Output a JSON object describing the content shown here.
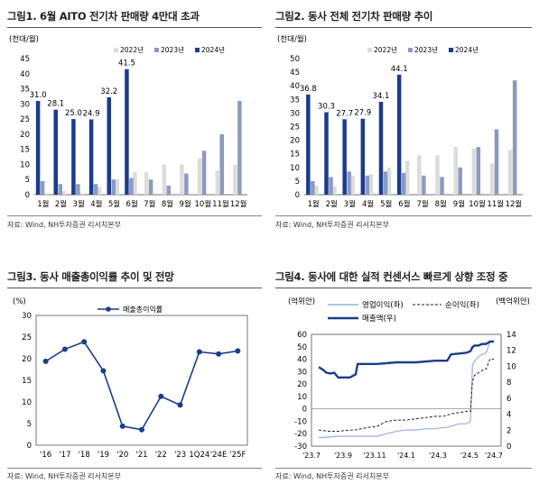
{
  "source_label": "자료: Wind, NH투자증권 리서치본부",
  "panels": [
    {
      "title": "그림1. 6월 AITO 전기차 판매량 4만대 초과"
    },
    {
      "title": "그림2. 동사 전체 전기차 판매량 추이"
    },
    {
      "title": "그림3. 동사 매출총이익률 추이 및 전망"
    },
    {
      "title": "그림4. 동사에 대한 실적 컨센서스 빠르게 상향 조정 중"
    }
  ],
  "colors": {
    "y2022": "#dcdcdc",
    "y2023": "#8a9ac2",
    "y2024": "#1b3c8c",
    "line": "#1b3c8c",
    "op": "#9aaed6",
    "net": "#222222"
  },
  "chart_data": [
    {
      "type": "bar",
      "title": "",
      "unit_label": "(천대/월)",
      "categories": [
        "1월",
        "2월",
        "3월",
        "4월",
        "5월",
        "6월",
        "7월",
        "8월",
        "9월",
        "10월",
        "11월",
        "12월"
      ],
      "ylim": [
        0,
        45
      ],
      "yticks": [
        0,
        5,
        10,
        15,
        20,
        25,
        30,
        35,
        40,
        45
      ],
      "series": [
        {
          "name": "2022년",
          "values": [
            0.5,
            1.2,
            0.5,
            2.5,
            5.0,
            7.5,
            7.5,
            10.0,
            10.0,
            12.0,
            8.0,
            10.0
          ]
        },
        {
          "name": "2023년",
          "values": [
            4.5,
            3.5,
            3.5,
            3.5,
            5.0,
            5.5,
            5.0,
            3.0,
            7.0,
            14.5,
            20.0,
            31.0
          ]
        },
        {
          "name": "2024년",
          "values": [
            31.0,
            28.1,
            25.0,
            24.9,
            32.2,
            41.5,
            null,
            null,
            null,
            null,
            null,
            null
          ]
        }
      ],
      "data_labels": [
        "31.0",
        "28.1",
        "25.0",
        "24.9",
        "32.2",
        "41.5"
      ]
    },
    {
      "type": "bar",
      "title": "",
      "unit_label": "(천대/월)",
      "categories": [
        "1월",
        "2월",
        "3월",
        "4월",
        "5월",
        "6월",
        "7월",
        "8월",
        "9월",
        "10월",
        "11월",
        "12월"
      ],
      "ylim": [
        0,
        50
      ],
      "yticks": [
        0,
        5,
        10,
        15,
        20,
        25,
        30,
        35,
        40,
        45,
        50
      ],
      "series": [
        {
          "name": "2022년",
          "values": [
            3.5,
            3.0,
            7.0,
            7.5,
            10.0,
            12.5,
            14.5,
            14.5,
            17.5,
            17.0,
            11.5,
            16.5
          ]
        },
        {
          "name": "2023년",
          "values": [
            5.0,
            6.5,
            8.5,
            7.0,
            8.5,
            8.0,
            7.0,
            6.5,
            10.0,
            17.5,
            24.0,
            42.0
          ]
        },
        {
          "name": "2024년",
          "values": [
            36.8,
            30.3,
            27.7,
            27.9,
            34.1,
            44.1,
            null,
            null,
            null,
            null,
            null,
            null
          ]
        }
      ],
      "data_labels": [
        "36.8",
        "30.3",
        "27.7",
        "27.9",
        "34.1",
        "44.1"
      ]
    },
    {
      "type": "line",
      "title": "",
      "unit_label": "(%)",
      "categories": [
        "'16",
        "'17",
        "'18",
        "'19",
        "'20",
        "'21",
        "'22",
        "'23",
        "1Q24",
        "'24E",
        "'25F"
      ],
      "ylim": [
        0,
        30
      ],
      "yticks": [
        0,
        5,
        10,
        15,
        20,
        25,
        30
      ],
      "series": [
        {
          "name": "매출총이익률",
          "values": [
            19.4,
            22.2,
            23.9,
            17.2,
            4.4,
            3.6,
            11.3,
            9.3,
            21.6,
            21.1,
            21.8
          ]
        }
      ]
    },
    {
      "type": "line",
      "title": "",
      "unit_label_left": "(억위안)",
      "unit_label_right": "(백억위안)",
      "x_ticks": [
        "'23.7",
        "'23.9",
        "'23.11",
        "'24.1",
        "'24.3",
        "'24.5",
        "'24.7"
      ],
      "ylim_left": [
        -30,
        60
      ],
      "yticks_left": [
        -30,
        -20,
        -10,
        0,
        10,
        20,
        30,
        40,
        50,
        60
      ],
      "ylim_right": [
        0,
        14
      ],
      "yticks_right": [
        0,
        2,
        4,
        6,
        8,
        10,
        12,
        14
      ],
      "series": [
        {
          "name": "영업이익(좌)",
          "axis": "left",
          "x": [
            0,
            2,
            10,
            16,
            19,
            25,
            30,
            35,
            40,
            45,
            50,
            55,
            60,
            64,
            66,
            68,
            72,
            76,
            78,
            79,
            80,
            82,
            84,
            86,
            88,
            90
          ],
          "values": [
            -23,
            -23,
            -22,
            -22,
            -22,
            -22,
            -22,
            -20,
            -18,
            -17,
            -17,
            -16,
            -16,
            -15,
            -15,
            -14,
            -12,
            -12,
            -10,
            35,
            38,
            42,
            44,
            45,
            54,
            54
          ]
        },
        {
          "name": "순이익(좌)",
          "axis": "left",
          "x": [
            0,
            5,
            10,
            16,
            19,
            25,
            30,
            35,
            40,
            45,
            50,
            55,
            60,
            64,
            66,
            68,
            72,
            76,
            78,
            79,
            80,
            82,
            84,
            86,
            88,
            90
          ],
          "values": [
            -17,
            -18,
            -18,
            -17,
            -17,
            -15,
            -14,
            -10,
            -9,
            -9,
            -8,
            -7,
            -6,
            -6,
            -5,
            -4,
            -3,
            -2,
            -2,
            22,
            27,
            29,
            31,
            32,
            40,
            40
          ]
        },
        {
          "name": "매출액(우)",
          "axis": "right",
          "x": [
            0,
            2,
            4,
            6,
            8,
            10,
            12,
            16,
            19,
            20,
            30,
            40,
            50,
            60,
            64,
            66,
            68,
            72,
            76,
            78,
            79,
            80,
            82,
            84,
            86,
            88,
            90
          ],
          "values": [
            9.9,
            9.6,
            9.2,
            9.1,
            9.2,
            8.6,
            8.6,
            8.6,
            9.0,
            10.3,
            10.3,
            10.5,
            10.5,
            10.7,
            10.7,
            10.7,
            11.5,
            11.6,
            11.7,
            11.9,
            12.4,
            12.6,
            12.6,
            12.8,
            12.8,
            13.1,
            13.1
          ]
        }
      ]
    }
  ]
}
